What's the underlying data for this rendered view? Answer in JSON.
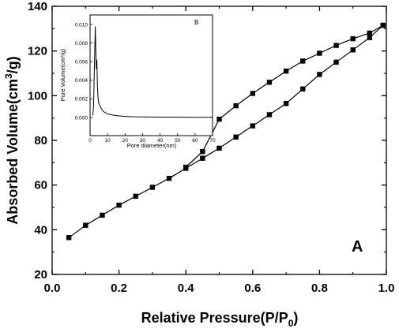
{
  "chart_data": [
    {
      "type": "line",
      "panel_label": "A",
      "xlabel_main": "Relative Pressure(P/P",
      "xlabel_sub": "0",
      "xlabel_end": ")",
      "ylabel_main": "Absorbed Volume(cm",
      "ylabel_sup": "3",
      "ylabel_end": "/g)",
      "xlim": [
        0.0,
        1.0
      ],
      "ylim": [
        20,
        140
      ],
      "xticks": [
        "0.0",
        "0.2",
        "0.4",
        "0.6",
        "0.8",
        "1.0"
      ],
      "yticks": [
        "20",
        "40",
        "60",
        "80",
        "100",
        "120",
        "140"
      ],
      "marker": "square",
      "color": "#000000",
      "series": [
        {
          "x": [
            0.05,
            0.1,
            0.15,
            0.2,
            0.25,
            0.3,
            0.35,
            0.4,
            0.45,
            0.5,
            0.55,
            0.6,
            0.65,
            0.7,
            0.75,
            0.8,
            0.85,
            0.9,
            0.95,
            0.99
          ],
          "y": [
            36.5,
            42,
            46.5,
            51,
            55,
            59,
            63,
            67.5,
            72,
            76.5,
            81.5,
            86.5,
            91.5,
            96.5,
            103,
            109.5,
            115,
            120.5,
            126,
            131.5
          ]
        },
        {
          "x": [
            0.99,
            0.95,
            0.9,
            0.85,
            0.8,
            0.75,
            0.7,
            0.65,
            0.6,
            0.55,
            0.5,
            0.45,
            0.4
          ],
          "y": [
            131.5,
            128,
            125.5,
            122.5,
            119,
            115.5,
            111,
            106,
            101,
            95.5,
            89.5,
            75,
            68
          ]
        }
      ]
    },
    {
      "type": "line",
      "panel_label": "B",
      "xlabel": "Pore diameter(nm)",
      "ylabel": "Pore Volume(cm³/g)",
      "xlim": [
        0,
        70
      ],
      "ylim": [
        0,
        0.01
      ],
      "xticks": [
        "0",
        "10",
        "20",
        "30",
        "40",
        "50",
        "60",
        "70"
      ],
      "yticks": [
        "0.000",
        "0.002",
        "0.004",
        "0.006",
        "0.008",
        "0.010"
      ],
      "color": "#000000",
      "series": [
        {
          "x": [
            1.5,
            2.0,
            2.5,
            3.0,
            3.3,
            3.6,
            3.9,
            4.2,
            4.5,
            5,
            6,
            7,
            8,
            10,
            12,
            15,
            20,
            25,
            30,
            40,
            50,
            60,
            70
          ],
          "y": [
            0.0002,
            0.0012,
            0.0055,
            0.0098,
            0.007,
            0.0052,
            0.0062,
            0.0035,
            0.0022,
            0.0015,
            0.0011,
            0.0008,
            0.0006,
            0.0004,
            0.0003,
            0.0002,
            0.00012,
            8e-05,
            6e-05,
            4e-05,
            3e-05,
            2e-05,
            2e-05
          ]
        }
      ]
    }
  ]
}
